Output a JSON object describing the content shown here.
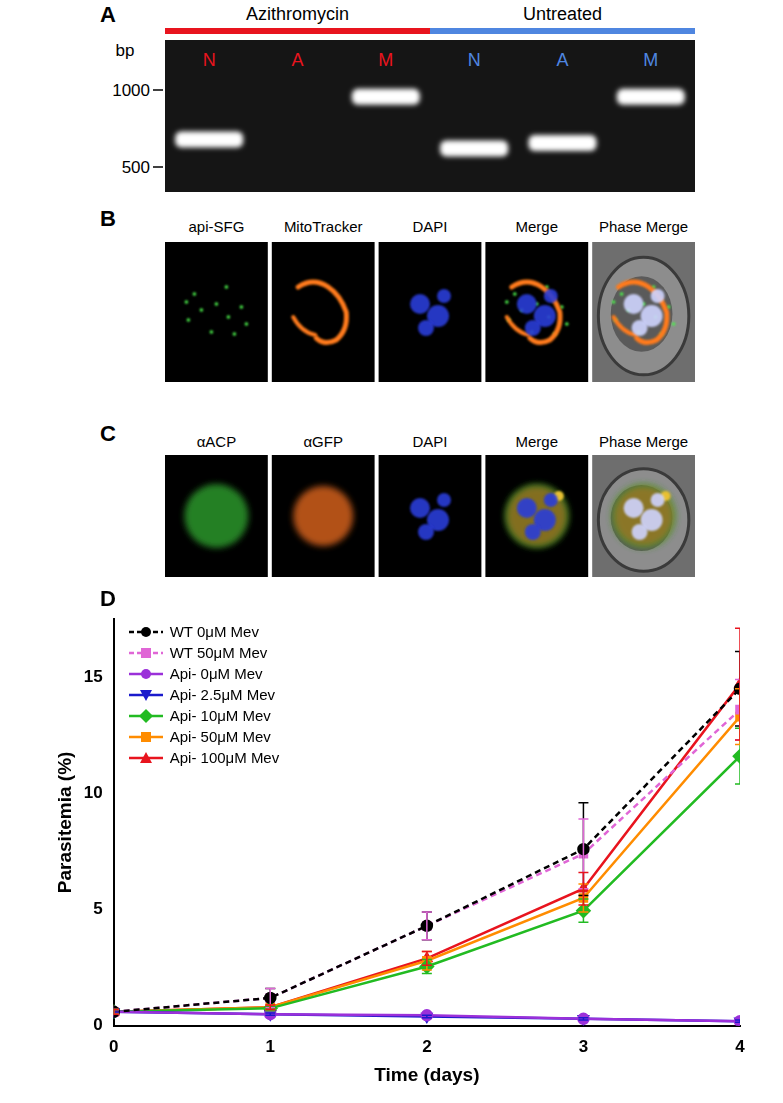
{
  "panel_a": {
    "label": "A",
    "y_axis_label": "bp",
    "marker_ticks": [
      1000,
      500
    ],
    "groups": [
      {
        "name": "Azithromycin",
        "color": "#e8141e",
        "lanes": [
          {
            "name": "N",
            "band_bp": 640
          },
          {
            "name": "A",
            "band_bp": null
          },
          {
            "name": "M",
            "band_bp": 940
          }
        ]
      },
      {
        "name": "Untreated",
        "color": "#4f86e0",
        "lanes": [
          {
            "name": "N",
            "band_bp": 590
          },
          {
            "name": "A",
            "band_bp": 620
          },
          {
            "name": "M",
            "band_bp": 940
          }
        ]
      }
    ]
  },
  "panel_b": {
    "label": "B",
    "images": [
      "api-SFG",
      "MitoTracker",
      "DAPI",
      "Merge",
      "Phase Merge"
    ]
  },
  "panel_c": {
    "label": "C",
    "images": [
      "αACP",
      "αGFP",
      "DAPI",
      "Merge",
      "Phase Merge"
    ]
  },
  "chart_data": {
    "type": "line",
    "label": "D",
    "x_label": "Time (days)",
    "y_label": "Parasitemia (%)",
    "x": [
      0,
      1,
      2,
      3,
      4
    ],
    "xlim": [
      0,
      4
    ],
    "xticks": [
      0,
      1,
      2,
      3,
      4
    ],
    "ylim": [
      0,
      17.5
    ],
    "yticks": [
      0,
      5,
      10,
      15
    ],
    "grid": false,
    "legend": "upper left",
    "series": [
      {
        "name": "WT 0μM Mev",
        "color": "#000000",
        "marker": "circle",
        "line_style": "dashed",
        "values": [
          0.6,
          1.2,
          4.3,
          7.6,
          14.5
        ],
        "errors": [
          0.1,
          0.4,
          0.6,
          2.0,
          1.6
        ]
      },
      {
        "name": "WT 50μM Mev",
        "color": "#e066d6",
        "marker": "square",
        "line_style": "dashed",
        "values": [
          0.6,
          1.2,
          4.3,
          7.4,
          13.6
        ],
        "errors": [
          0.1,
          0.4,
          0.6,
          1.5,
          1.3
        ]
      },
      {
        "name": "Api- 0μM Mev",
        "color": "#9b30d9",
        "marker": "circle",
        "line_style": "solid",
        "values": [
          0.6,
          0.5,
          0.45,
          0.3,
          0.2
        ],
        "errors": [
          0.05,
          0.05,
          0.05,
          0.05,
          0.05
        ]
      },
      {
        "name": "Api- 2.5μM Mev",
        "color": "#1a1acc",
        "marker": "triangle_down",
        "line_style": "solid",
        "values": [
          0.6,
          0.5,
          0.4,
          0.3,
          0.2
        ],
        "errors": [
          0.05,
          0.05,
          0.05,
          0.05,
          0.05
        ]
      },
      {
        "name": "Api- 10μM Mev",
        "color": "#22bb22",
        "marker": "diamond",
        "line_style": "solid",
        "values": [
          0.6,
          0.75,
          2.55,
          4.95,
          11.6
        ],
        "errors": [
          0.1,
          0.1,
          0.3,
          0.5,
          1.2
        ]
      },
      {
        "name": "Api- 50μM Mev",
        "color": "#ff8c00",
        "marker": "square",
        "line_style": "solid",
        "values": [
          0.6,
          0.8,
          2.8,
          5.5,
          13.3
        ],
        "errors": [
          0.1,
          0.1,
          0.4,
          0.6,
          1.2
        ]
      },
      {
        "name": "Api- 100μM Mev",
        "color": "#e8141e",
        "marker": "triangle",
        "line_style": "solid",
        "values": [
          0.6,
          0.8,
          2.9,
          5.9,
          14.7
        ],
        "errors": [
          0.1,
          0.1,
          0.3,
          0.7,
          2.4
        ]
      }
    ]
  }
}
